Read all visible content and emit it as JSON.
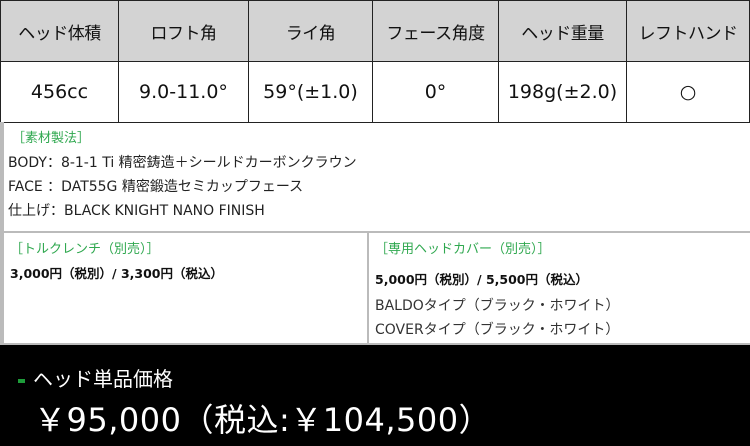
{
  "spec_table": {
    "headers": [
      "ヘッド体積",
      "ロフト角",
      "ライ角",
      "フェース角度",
      "ヘッド重量",
      "レフトハンド"
    ],
    "values": [
      "456cc",
      "9.0-11.0°",
      "59°(±1.0)",
      "0°",
      "198g(±2.0)",
      "○"
    ]
  },
  "materials": {
    "title": "［素材製法］",
    "lines": [
      "BODY：8-1-1 Ti 精密鋳造＋シールドカーボンクラウン",
      "FACE ：DAT55G 精密鍛造セミカップフェース",
      "仕上げ：BLACK KNIGHT NANO FINISH"
    ]
  },
  "torque_wrench": {
    "title": "［トルクレンチ（別売）］",
    "price": "3,000円（税別）/ 3,300円（税込）"
  },
  "head_cover": {
    "title": "［専用ヘッドカバー（別売）］",
    "price": "5,000円（税別）/ 5,500円（税込）",
    "types": [
      "BALDOタイプ（ブラック・ホワイト）",
      "COVERタイプ（ブラック・ホワイト）"
    ]
  },
  "price_bar": {
    "label": "ヘッド単品価格",
    "price": "￥95,000（税込:￥104,500）"
  },
  "colors": {
    "accent": "#2fa84f",
    "header_bg": "#d3d3d3",
    "price_bg": "#000000"
  }
}
